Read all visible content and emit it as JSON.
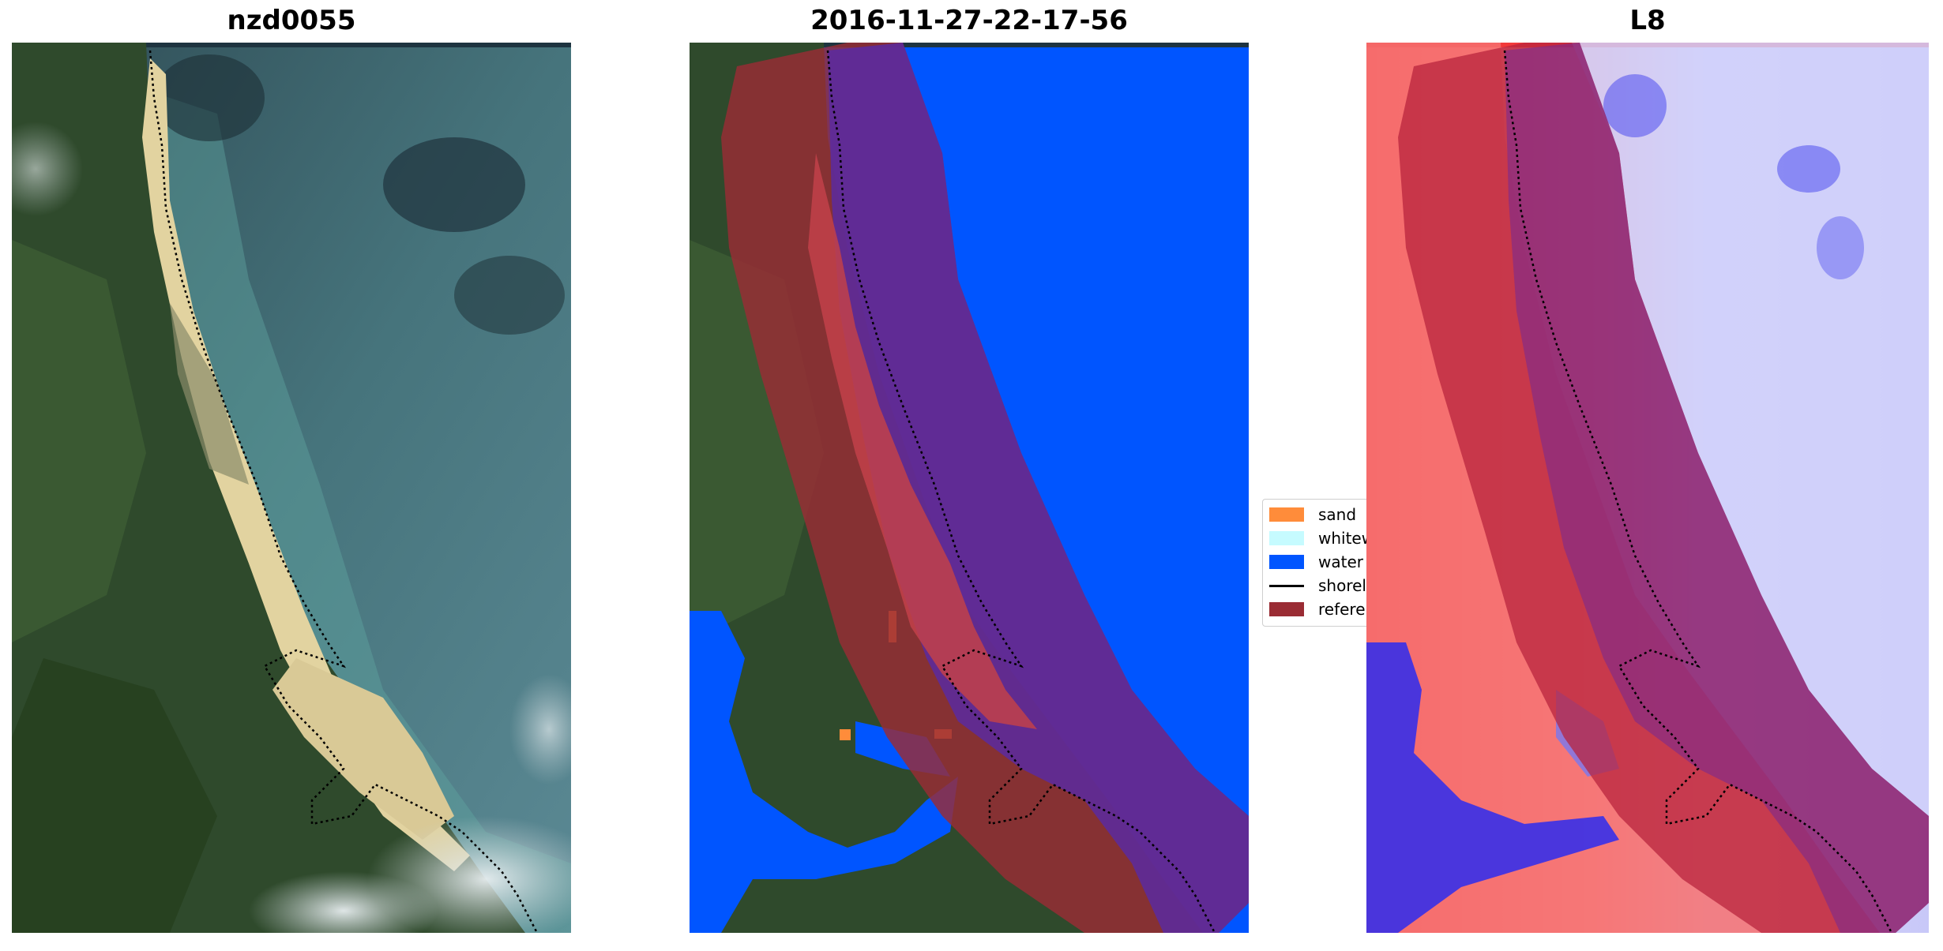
{
  "panels": [
    {
      "title": "nzd0055"
    },
    {
      "title": "2016-11-27-22-17-56"
    },
    {
      "title": "L8"
    }
  ],
  "legend": {
    "items": [
      {
        "label": "sand",
        "color": "#ff8c3a",
        "kind": "patch"
      },
      {
        "label": "whitew",
        "color": "#c6fbff",
        "kind": "patch"
      },
      {
        "label": "water",
        "color": "#0055ff",
        "kind": "patch"
      },
      {
        "label": "shorel",
        "color": "#000000",
        "kind": "line"
      },
      {
        "label": "referer",
        "color": "#9a2c34",
        "kind": "patch"
      }
    ]
  },
  "colors": {
    "reference_buffer": "#9a2c34",
    "water_class": "#0055ff",
    "sand_class": "#ff8c3a",
    "ocean": "#3f6e7a",
    "land": "#2d4a2a",
    "beach": "#e6d6a4"
  }
}
